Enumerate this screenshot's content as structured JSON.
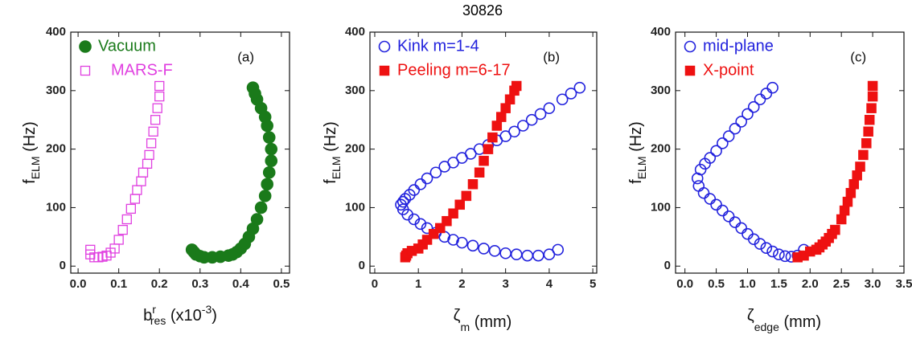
{
  "title": "30826",
  "chart_data": [
    {
      "type": "scatter",
      "annotation": "(a)",
      "xlabel": [
        "b",
        "r",
        "res",
        " (x10",
        "-3",
        ")"
      ],
      "ylabel": [
        "f",
        "ELM",
        " (Hz)"
      ],
      "xlim": [
        -0.018,
        0.52
      ],
      "ylim": [
        -12,
        400
      ],
      "xticks": [
        {
          "value": 0,
          "label": "0.0"
        },
        0.1,
        0.2,
        0.3,
        0.4,
        0.5
      ],
      "yticks": [
        0,
        100,
        200,
        300,
        400
      ],
      "series": [
        {
          "name": "Vacuum",
          "color": "#1a7a1a",
          "marker": "circle",
          "filled": true,
          "x": [
            0.28,
            0.285,
            0.29,
            0.3,
            0.31,
            0.33,
            0.35,
            0.37,
            0.38,
            0.39,
            0.4,
            0.41,
            0.42,
            0.43,
            0.44,
            0.45,
            0.46,
            0.465,
            0.47,
            0.475,
            0.475,
            0.47,
            0.465,
            0.46,
            0.45,
            0.44,
            0.435,
            0.43
          ],
          "values": [
            28,
            24,
            20,
            17,
            15,
            15,
            16,
            18,
            20,
            24,
            30,
            38,
            50,
            64,
            80,
            100,
            120,
            140,
            160,
            180,
            200,
            220,
            240,
            255,
            270,
            285,
            295,
            305
          ]
        },
        {
          "name": "MARS-F",
          "color": "#e040e0",
          "marker": "square",
          "filled": false,
          "x": [
            0.03,
            0.03,
            0.04,
            0.05,
            0.06,
            0.07,
            0.08,
            0.09,
            0.1,
            0.11,
            0.12,
            0.13,
            0.14,
            0.145,
            0.155,
            0.16,
            0.17,
            0.175,
            0.18,
            0.185,
            0.19,
            0.195,
            0.2,
            0.2
          ],
          "values": [
            28,
            20,
            15,
            15,
            16,
            18,
            23,
            30,
            45,
            62,
            80,
            98,
            115,
            130,
            145,
            160,
            175,
            190,
            210,
            230,
            250,
            270,
            290,
            308
          ]
        }
      ]
    },
    {
      "type": "scatter",
      "annotation": "(b)",
      "xlabel": [
        "ζ",
        "m",
        " (mm)"
      ],
      "ylabel": [
        "f",
        "ELM",
        " (Hz)"
      ],
      "xlim": [
        -0.11,
        5.09
      ],
      "ylim": [
        -12,
        400
      ],
      "xticks": [
        0,
        1,
        2,
        3,
        4,
        5
      ],
      "yticks": [
        0,
        100,
        200,
        300,
        400
      ],
      "series": [
        {
          "name": "Kink m=1-4",
          "color": "#2222dd",
          "marker": "circle",
          "filled": false,
          "x": [
            4.7,
            4.5,
            4.3,
            4.0,
            3.8,
            3.6,
            3.4,
            3.2,
            3.0,
            2.8,
            2.6,
            2.4,
            2.2,
            2.0,
            1.8,
            1.6,
            1.4,
            1.2,
            1.05,
            0.9,
            0.8,
            0.7,
            0.65,
            0.6,
            0.65,
            0.75,
            0.9,
            1.05,
            1.2,
            1.4,
            1.6,
            1.8,
            2.0,
            2.25,
            2.5,
            2.75,
            3.0,
            3.25,
            3.5,
            3.75,
            4.0,
            4.2
          ],
          "values": [
            305,
            295,
            285,
            270,
            260,
            250,
            240,
            230,
            222,
            215,
            207,
            200,
            192,
            185,
            177,
            170,
            160,
            150,
            140,
            130,
            122,
            115,
            110,
            105,
            97,
            88,
            80,
            72,
            65,
            57,
            50,
            45,
            40,
            35,
            30,
            26,
            22,
            20,
            18,
            18,
            20,
            28
          ]
        },
        {
          "name": "Peeling m=6-17",
          "color": "#ee1111",
          "marker": "square",
          "filled": true,
          "x": [
            0.7,
            0.72,
            0.75,
            0.85,
            1.0,
            1.1,
            1.2,
            1.35,
            1.5,
            1.65,
            1.8,
            1.95,
            2.1,
            2.25,
            2.4,
            2.5,
            2.6,
            2.7,
            2.8,
            2.9,
            3.0,
            3.1,
            3.2,
            3.25
          ],
          "values": [
            15,
            18,
            22,
            26,
            30,
            37,
            45,
            55,
            65,
            77,
            90,
            105,
            120,
            140,
            160,
            180,
            200,
            220,
            240,
            255,
            270,
            285,
            300,
            308
          ]
        }
      ]
    },
    {
      "type": "scatter",
      "annotation": "(c)",
      "xlabel": [
        "ζ",
        "edge",
        " (mm)"
      ],
      "ylabel": [
        "f",
        "ELM",
        " (Hz)"
      ],
      "xlim": [
        -0.15,
        3.5
      ],
      "ylim": [
        -12,
        400
      ],
      "xticks": [
        {
          "value": 0,
          "label": "0.0"
        },
        0.5,
        {
          "value": 1,
          "label": "1.0"
        },
        1.5,
        {
          "value": 2,
          "label": "2.0"
        },
        2.5,
        {
          "value": 3,
          "label": "3.0"
        },
        3.5
      ],
      "yticks": [
        0,
        100,
        200,
        300,
        400
      ],
      "series": [
        {
          "name": "mid-plane",
          "color": "#2222dd",
          "marker": "circle",
          "filled": false,
          "x": [
            1.4,
            1.3,
            1.2,
            1.1,
            1.0,
            0.9,
            0.8,
            0.7,
            0.6,
            0.5,
            0.4,
            0.32,
            0.25,
            0.2,
            0.22,
            0.3,
            0.4,
            0.5,
            0.6,
            0.7,
            0.8,
            0.9,
            1.0,
            1.1,
            1.2,
            1.3,
            1.4,
            1.5,
            1.6,
            1.7,
            1.8,
            1.9
          ],
          "values": [
            305,
            295,
            285,
            272,
            260,
            247,
            235,
            222,
            210,
            197,
            185,
            175,
            165,
            150,
            137,
            125,
            115,
            105,
            95,
            85,
            75,
            65,
            55,
            46,
            38,
            31,
            25,
            20,
            17,
            16,
            18,
            28
          ]
        },
        {
          "name": "X-point",
          "color": "#ee1111",
          "marker": "square",
          "filled": true,
          "x": [
            1.8,
            1.9,
            2.0,
            2.1,
            2.15,
            2.2,
            2.25,
            2.3,
            2.35,
            2.4,
            2.5,
            2.55,
            2.6,
            2.65,
            2.7,
            2.75,
            2.8,
            2.85,
            2.9,
            2.93,
            2.95,
            2.98,
            3.0,
            3.0
          ],
          "values": [
            15,
            18,
            25,
            28,
            32,
            37,
            42,
            48,
            55,
            62,
            80,
            95,
            110,
            125,
            140,
            155,
            170,
            190,
            210,
            230,
            250,
            270,
            290,
            308
          ]
        }
      ]
    }
  ]
}
